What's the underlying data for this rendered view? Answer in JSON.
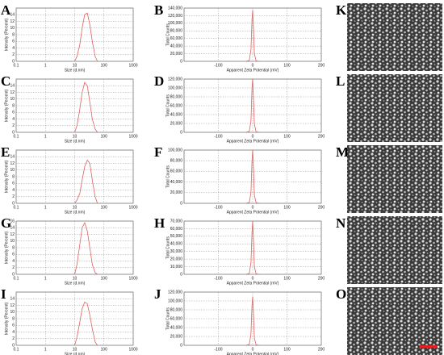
{
  "chart_data": [
    {
      "type": "line",
      "label": "A",
      "xlabel": "Size (d.nm)",
      "ylabel": "Intensity (Percent)",
      "xlog": true,
      "grid": true,
      "color": "#e06060",
      "x": [
        10,
        12,
        15,
        18,
        22,
        27,
        33,
        40,
        50,
        60
      ],
      "values": [
        0,
        1.5,
        5,
        10,
        14,
        14.5,
        11,
        6,
        1.5,
        0
      ],
      "xlim": [
        0.1,
        1000
      ],
      "xticks": [
        0.1,
        1,
        10,
        100,
        1000
      ],
      "ylim": [
        0,
        16
      ],
      "yticks": [
        0,
        2,
        4,
        6,
        8,
        10,
        12,
        14
      ]
    },
    {
      "type": "line",
      "label": "B",
      "xlabel": "Apparent Zeta Potential (mV)",
      "ylabel": "Total Counts",
      "xlog": false,
      "grid": true,
      "color": "#e06060",
      "x": [
        -20,
        -10,
        -5,
        -2,
        0,
        2,
        5,
        10,
        20
      ],
      "values": [
        0,
        2000,
        30000,
        110000,
        135000,
        90000,
        20000,
        1000,
        0
      ],
      "xlim": [
        -200,
        200
      ],
      "xticks": [
        -100,
        0,
        100,
        200
      ],
      "ylim": [
        0,
        140000
      ],
      "yticks": [
        0,
        {
          "value": 20000,
          "label": "20,000"
        },
        {
          "value": 40000,
          "label": "40,000"
        },
        {
          "value": 60000,
          "label": "60,000"
        },
        {
          "value": 80000,
          "label": "80,000"
        },
        {
          "value": 100000,
          "label": "100,000"
        },
        {
          "value": 120000,
          "label": "120,000"
        },
        {
          "value": 140000,
          "label": "140,000"
        }
      ]
    },
    {
      "type": "line",
      "label": "C",
      "xlabel": "Size (d.nm)",
      "ylabel": "Intensity (Percent)",
      "xlog": true,
      "grid": true,
      "color": "#e06060",
      "x": [
        10,
        12,
        15,
        18,
        22,
        27,
        33,
        40,
        50,
        60
      ],
      "values": [
        0,
        2,
        7,
        12,
        15,
        14,
        9,
        4,
        1,
        0
      ],
      "xlim": [
        0.1,
        1000
      ],
      "xticks": [
        0.1,
        1,
        10,
        100,
        1000
      ],
      "ylim": [
        0,
        16
      ],
      "yticks": [
        0,
        2,
        4,
        6,
        8,
        10,
        12,
        14
      ]
    },
    {
      "type": "line",
      "label": "D",
      "xlabel": "Apparent Zeta Potential (mV)",
      "ylabel": "Total Counts",
      "xlog": false,
      "grid": true,
      "color": "#e06060",
      "x": [
        -20,
        -10,
        -5,
        -2,
        0,
        2,
        5,
        10,
        20
      ],
      "values": [
        0,
        2000,
        25000,
        100000,
        120000,
        80000,
        18000,
        1000,
        0
      ],
      "xlim": [
        -200,
        200
      ],
      "xticks": [
        -100,
        0,
        100,
        200
      ],
      "ylim": [
        0,
        120000
      ],
      "yticks": [
        0,
        {
          "value": 20000,
          "label": "20,000"
        },
        {
          "value": 40000,
          "label": "40,000"
        },
        {
          "value": 60000,
          "label": "60,000"
        },
        {
          "value": 80000,
          "label": "80,000"
        },
        {
          "value": 100000,
          "label": "100,000"
        },
        {
          "value": 120000,
          "label": "120,000"
        }
      ]
    },
    {
      "type": "line",
      "label": "E",
      "xlabel": "Size (d.nm)",
      "ylabel": "Intensity (Percent)",
      "xlog": true,
      "grid": true,
      "color": "#e06060",
      "x": [
        10,
        12,
        15,
        18,
        22,
        27,
        33,
        40,
        50,
        60
      ],
      "values": [
        0,
        1,
        3,
        7,
        11,
        13,
        12,
        7,
        2,
        0
      ],
      "xlim": [
        0.1,
        1000
      ],
      "xticks": [
        0.1,
        1,
        10,
        100,
        1000
      ],
      "ylim": [
        0,
        16
      ],
      "yticks": [
        0,
        2,
        4,
        6,
        8,
        10,
        12,
        14
      ]
    },
    {
      "type": "line",
      "label": "F",
      "xlabel": "Apparent Zeta Potential (mV)",
      "ylabel": "Total Counts",
      "xlog": false,
      "grid": true,
      "color": "#e06060",
      "x": [
        -20,
        -10,
        -5,
        -2,
        0,
        2,
        5,
        10,
        20
      ],
      "values": [
        0,
        1500,
        20000,
        80000,
        100000,
        70000,
        15000,
        1000,
        0
      ],
      "xlim": [
        -200,
        200
      ],
      "xticks": [
        -100,
        0,
        100,
        200
      ],
      "ylim": [
        0,
        100000
      ],
      "yticks": [
        0,
        {
          "value": 20000,
          "label": "20,000"
        },
        {
          "value": 40000,
          "label": "40,000"
        },
        {
          "value": 60000,
          "label": "60,000"
        },
        {
          "value": 80000,
          "label": "80,000"
        },
        {
          "value": 100000,
          "label": "100,000"
        }
      ]
    },
    {
      "type": "line",
      "label": "G",
      "xlabel": "Size (d.nm)",
      "ylabel": "Intensity (Percent)",
      "xlog": true,
      "grid": true,
      "color": "#e06060",
      "x": [
        10,
        12,
        15,
        18,
        22,
        27,
        33,
        40,
        50,
        60
      ],
      "values": [
        0,
        3,
        9,
        14,
        15.5,
        13,
        8,
        3,
        0.5,
        0
      ],
      "xlim": [
        0.1,
        1000
      ],
      "xticks": [
        0.1,
        1,
        10,
        100,
        1000
      ],
      "ylim": [
        0,
        16
      ],
      "yticks": [
        0,
        2,
        4,
        6,
        8,
        10,
        12,
        14,
        16
      ]
    },
    {
      "type": "line",
      "label": "H",
      "xlabel": "Apparent Zeta Potential (mV)",
      "ylabel": "Total Counts",
      "xlog": false,
      "grid": true,
      "color": "#e06060",
      "x": [
        -20,
        -10,
        -5,
        -2,
        0,
        2,
        5,
        10,
        20
      ],
      "values": [
        0,
        1000,
        15000,
        55000,
        70000,
        48000,
        10000,
        500,
        0
      ],
      "xlim": [
        -200,
        200
      ],
      "xticks": [
        -100,
        0,
        100,
        200
      ],
      "ylim": [
        0,
        70000
      ],
      "yticks": [
        0,
        {
          "value": 10000,
          "label": "10,000"
        },
        {
          "value": 20000,
          "label": "20,000"
        },
        {
          "value": 30000,
          "label": "30,000"
        },
        {
          "value": 40000,
          "label": "40,000"
        },
        {
          "value": 50000,
          "label": "50,000"
        },
        {
          "value": 60000,
          "label": "60,000"
        },
        {
          "value": 70000,
          "label": "70,000"
        }
      ]
    },
    {
      "type": "line",
      "label": "I",
      "xlabel": "Size (d.nm)",
      "ylabel": "Intensity (Percent)",
      "xlog": true,
      "grid": true,
      "color": "#e06060",
      "x": [
        10,
        12,
        15,
        18,
        22,
        27,
        33,
        40,
        50,
        60
      ],
      "values": [
        0,
        2.5,
        7,
        11,
        13,
        12.5,
        9,
        5,
        1,
        0
      ],
      "xlim": [
        0.1,
        1000
      ],
      "xticks": [
        0.1,
        1,
        10,
        100,
        1000
      ],
      "ylim": [
        0,
        16
      ],
      "yticks": [
        0,
        2,
        4,
        6,
        8,
        10,
        12,
        14
      ]
    },
    {
      "type": "line",
      "label": "J",
      "xlabel": "Apparent Zeta Potential (mV)",
      "ylabel": "Total Counts",
      "xlog": false,
      "grid": true,
      "color": "#e06060",
      "x": [
        -20,
        -10,
        -5,
        -2,
        0,
        2,
        5,
        10,
        20
      ],
      "values": [
        0,
        2000,
        25000,
        90000,
        110000,
        75000,
        16000,
        1000,
        0
      ],
      "xlim": [
        -200,
        200
      ],
      "xticks": [
        -100,
        0,
        100,
        200
      ],
      "ylim": [
        0,
        120000
      ],
      "yticks": [
        0,
        {
          "value": 20000,
          "label": "20,000"
        },
        {
          "value": 40000,
          "label": "40,000"
        },
        {
          "value": 60000,
          "label": "60,000"
        },
        {
          "value": 80000,
          "label": "80,000"
        },
        {
          "value": 100000,
          "label": "100,000"
        },
        {
          "value": 120000,
          "label": "120,000"
        }
      ]
    }
  ],
  "image_panels": [
    "K",
    "L",
    "M",
    "N",
    "O"
  ]
}
